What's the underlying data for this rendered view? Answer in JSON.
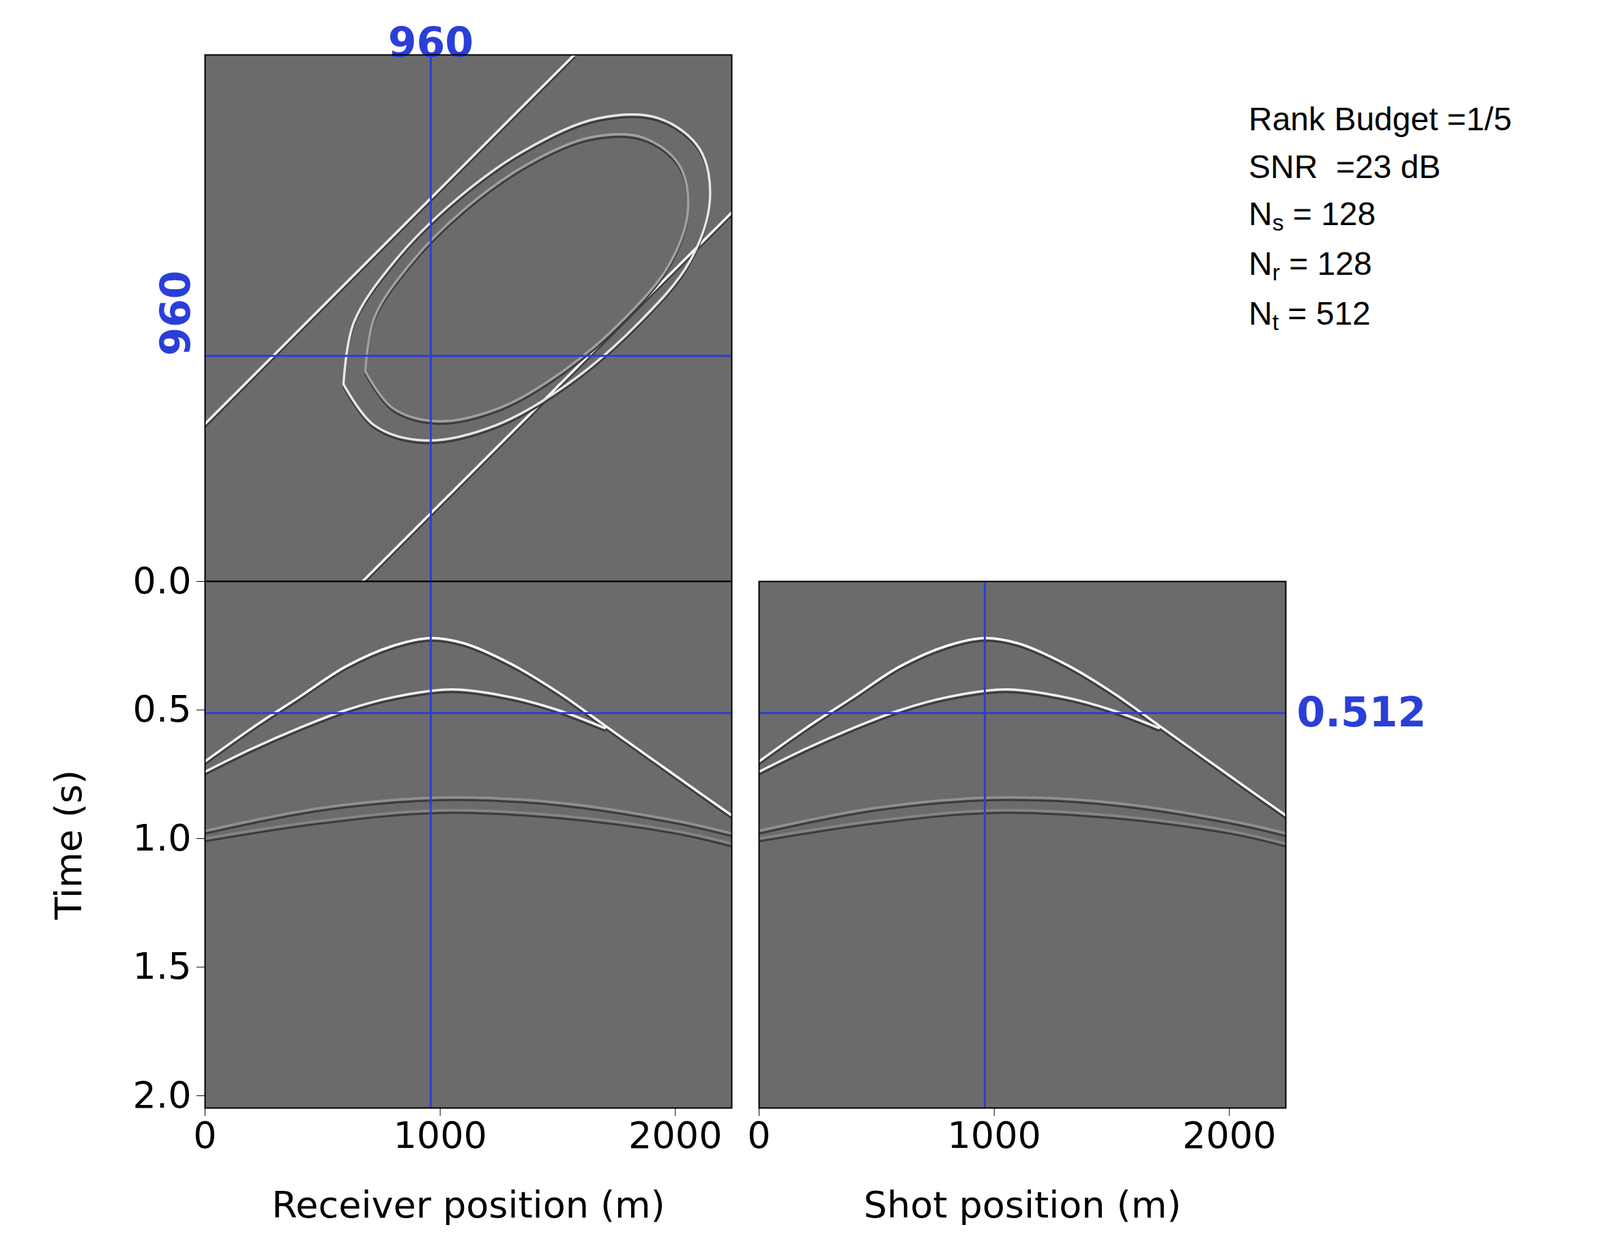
{
  "chart_data": [
    {
      "type": "line",
      "xlim": [
        0,
        2240
      ],
      "ylim": [
        0,
        2240
      ],
      "tick_labels": false,
      "crosshairs": [
        {
          "axis": "x",
          "value": 960,
          "color": "#2a3fd8",
          "labeled": true
        },
        {
          "axis": "y",
          "value": 960,
          "color": "#2a3fd8",
          "labeled": true
        }
      ],
      "series": [
        {
          "color": "#ffffff",
          "x": [
            0,
            1570
          ],
          "values": [
            670,
            2240
          ]
        },
        {
          "color": "#ffffff",
          "x": [
            670,
            2240
          ],
          "values": [
            0,
            1570
          ]
        },
        {
          "color": "#e6e6e6",
          "x": [
            589,
            632,
            805,
            1065,
            1368,
            1671,
            1931,
            2104,
            2147,
            2061,
            1844,
            1541,
            1238,
            935,
            719,
            589
          ],
          "values": [
            839,
            1100,
            1361,
            1622,
            1839,
            1970,
            1970,
            1839,
            1622,
            1361,
            1100,
            839,
            665,
            600,
            665,
            839
          ]
        },
        {
          "color": "#a0a0a0",
          "x": [
            682,
            720,
            873,
            1101,
            1368,
            1635,
            1863,
            2016,
            2054,
            1976,
            1787,
            1520,
            1254,
            987,
            797,
            682
          ],
          "values": [
            893,
            1122,
            1352,
            1582,
            1773,
            1888,
            1888,
            1773,
            1582,
            1352,
            1122,
            893,
            739,
            682,
            739,
            893
          ]
        }
      ],
      "annotations": [
        {
          "text": "Rank Budget =1/5"
        },
        {
          "text": "SNR  =23 dB"
        },
        {
          "text": "N",
          "sub": "s",
          "rest": " = 128"
        },
        {
          "text": "N",
          "sub": "r",
          "rest": " = 128"
        },
        {
          "text": "N",
          "sub": "t",
          "rest": " = 512"
        }
      ]
    },
    {
      "type": "line",
      "xlabel": "Receiver position (m)",
      "ylabel": "Time (s)",
      "xlim": [
        0,
        2240
      ],
      "ylim": [
        0,
        2.048
      ],
      "xticks": [
        0,
        1000,
        2000
      ],
      "yticks": [
        {
          "value": 0,
          "label": "0.0"
        },
        0.5,
        {
          "value": 1,
          "label": "1.0"
        },
        1.5,
        {
          "value": 2,
          "label": "2.0"
        }
      ],
      "crosshairs": [
        {
          "axis": "x",
          "value": 960,
          "color": "#2a3fd8",
          "labeled": false
        },
        {
          "axis": "y",
          "value": 0.512,
          "color": "#2a3fd8",
          "labeled": false
        }
      ],
      "series": [
        {
          "color": "#ffffff",
          "x": [
            0,
            200,
            400,
            600,
            800,
            960,
            1100,
            1300,
            1500,
            1700,
            1900,
            2100,
            2240
          ],
          "values": [
            0.7,
            0.57,
            0.45,
            0.33,
            0.25,
            0.22,
            0.24,
            0.32,
            0.43,
            0.56,
            0.69,
            0.82,
            0.91
          ]
        },
        {
          "color": "#f0f0f0",
          "x": [
            0,
            200,
            400,
            600,
            800,
            1050,
            1300,
            1500,
            1700
          ],
          "values": [
            0.74,
            0.65,
            0.57,
            0.5,
            0.45,
            0.42,
            0.45,
            0.5,
            0.57
          ]
        },
        {
          "color": "#909090",
          "x": [
            0,
            500,
            1000,
            1500,
            2000,
            2240
          ],
          "values": [
            0.97,
            0.88,
            0.84,
            0.86,
            0.93,
            0.98
          ]
        },
        {
          "color": "#858585",
          "x": [
            0,
            500,
            1000,
            1500,
            2000,
            2240
          ],
          "values": [
            1.0,
            0.93,
            0.89,
            0.91,
            0.97,
            1.02
          ]
        }
      ]
    },
    {
      "type": "line",
      "xlabel": "Shot position (m)",
      "xlim": [
        0,
        2240
      ],
      "ylim": [
        0,
        2.048
      ],
      "xticks": [
        0,
        1000,
        2000
      ],
      "tick_labels": "x",
      "crosshairs": [
        {
          "axis": "x",
          "value": 960,
          "color": "#2a3fd8",
          "labeled": false
        },
        {
          "axis": "y",
          "value": 0.512,
          "color": "#2a3fd8",
          "labeled": true
        }
      ],
      "series": [
        {
          "color": "#ffffff",
          "x": [
            0,
            200,
            400,
            600,
            800,
            960,
            1100,
            1300,
            1500,
            1700,
            1900,
            2100,
            2240
          ],
          "values": [
            0.7,
            0.57,
            0.45,
            0.33,
            0.25,
            0.22,
            0.24,
            0.32,
            0.43,
            0.56,
            0.69,
            0.82,
            0.91
          ]
        },
        {
          "color": "#f0f0f0",
          "x": [
            0,
            200,
            400,
            600,
            800,
            1050,
            1300,
            1500,
            1700
          ],
          "values": [
            0.74,
            0.65,
            0.57,
            0.5,
            0.45,
            0.42,
            0.45,
            0.5,
            0.57
          ]
        },
        {
          "color": "#909090",
          "x": [
            0,
            500,
            1000,
            1500,
            2000,
            2240
          ],
          "values": [
            0.97,
            0.88,
            0.84,
            0.86,
            0.93,
            0.98
          ]
        },
        {
          "color": "#858585",
          "x": [
            0,
            500,
            1000,
            1500,
            2000,
            2240
          ],
          "values": [
            1.0,
            0.93,
            0.89,
            0.91,
            0.97,
            1.02
          ]
        }
      ]
    }
  ]
}
